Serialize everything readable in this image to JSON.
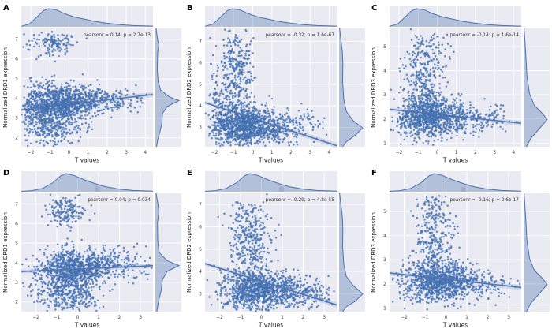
{
  "figure": {
    "background": "#ffffff",
    "xlabel": "T values"
  },
  "colors": {
    "axes_bg": "#eaeaf2",
    "grid": "#ffffff",
    "point": "#4471b2",
    "line": "#4c72b0",
    "band": "rgba(76,114,176,0.18)",
    "kde_fill": "rgba(76,114,176,0.35)",
    "kde_stroke": "#4c72b0",
    "hist_bar": "rgba(140,155,190,0.5)",
    "tick_text": "#444444",
    "label_text": "#1a1a1a",
    "annotation_text": "#333333"
  },
  "chart_data": [
    {
      "label": "A",
      "type": "scatter",
      "xlabel": "T values",
      "ylabel": "Normalized DRD1 expression",
      "annotation": "pearsonr = 0.14; p = 2.7e-13",
      "xlim": [
        -2.5,
        4.4
      ],
      "ylim": [
        1.55,
        7.55
      ],
      "xticks": [
        -2,
        -1,
        0,
        1,
        2,
        3,
        4
      ],
      "yticks": [
        2,
        3,
        4,
        5,
        6,
        7
      ],
      "regression": {
        "x": [
          -2.5,
          4.4
        ],
        "y": [
          3.42,
          4.2
        ]
      },
      "clusters": [
        [
          -0.55,
          3.75,
          0.95,
          0.5,
          850
        ],
        [
          0.9,
          3.9,
          1.1,
          0.35,
          260
        ],
        [
          2.9,
          4.0,
          0.8,
          0.3,
          45
        ],
        [
          -0.9,
          6.75,
          0.55,
          0.33,
          140
        ],
        [
          -0.8,
          2.5,
          0.75,
          0.5,
          270
        ],
        [
          -1.6,
          3.4,
          0.4,
          0.7,
          110
        ]
      ],
      "kde_top": [
        [
          0,
          0.03
        ],
        [
          0.06,
          0.15
        ],
        [
          0.12,
          0.55
        ],
        [
          0.17,
          0.9
        ],
        [
          0.21,
          1
        ],
        [
          0.27,
          0.92
        ],
        [
          0.33,
          0.72
        ],
        [
          0.4,
          0.55
        ],
        [
          0.48,
          0.42
        ],
        [
          0.56,
          0.3
        ],
        [
          0.65,
          0.2
        ],
        [
          0.75,
          0.12
        ],
        [
          0.85,
          0.07
        ],
        [
          1,
          0.04
        ]
      ],
      "kde_right": [
        [
          0,
          0.03
        ],
        [
          0.1,
          0.1
        ],
        [
          0.14,
          0.15
        ],
        [
          0.2,
          0.1
        ],
        [
          0.35,
          0.08
        ],
        [
          0.45,
          0.12
        ],
        [
          0.52,
          0.22
        ],
        [
          0.58,
          0.6
        ],
        [
          0.61,
          1
        ],
        [
          0.66,
          0.5
        ],
        [
          0.72,
          0.3
        ],
        [
          0.8,
          0.28
        ],
        [
          0.87,
          0.2
        ],
        [
          0.94,
          0.1
        ],
        [
          1,
          0.05
        ]
      ],
      "seed": 101
    },
    {
      "label": "B",
      "type": "scatter",
      "xlabel": "T values",
      "ylabel": "Normalized DRD2 expression",
      "annotation": "pearsonr = -0.32; p = 1.6e-67",
      "xlim": [
        -2.5,
        4.4
      ],
      "ylim": [
        2.1,
        7.6
      ],
      "xticks": [
        -2,
        -1,
        0,
        1,
        2,
        3,
        4
      ],
      "yticks": [
        3,
        4,
        5,
        6,
        7
      ],
      "regression": {
        "x": [
          -2.5,
          4.4
        ],
        "y": [
          4.15,
          2.15
        ]
      },
      "clusters": [
        [
          -0.6,
          3.1,
          0.75,
          0.45,
          850
        ],
        [
          -0.9,
          5.6,
          0.5,
          1.0,
          320
        ],
        [
          0.9,
          3.0,
          0.9,
          0.38,
          300
        ],
        [
          2.6,
          3.2,
          0.6,
          0.35,
          55
        ],
        [
          -1.7,
          4.1,
          0.35,
          0.8,
          110
        ]
      ],
      "kde_top": [
        [
          0,
          0.03
        ],
        [
          0.06,
          0.15
        ],
        [
          0.12,
          0.55
        ],
        [
          0.17,
          0.9
        ],
        [
          0.21,
          1
        ],
        [
          0.27,
          0.92
        ],
        [
          0.33,
          0.72
        ],
        [
          0.4,
          0.55
        ],
        [
          0.48,
          0.42
        ],
        [
          0.56,
          0.3
        ],
        [
          0.65,
          0.2
        ],
        [
          0.75,
          0.12
        ],
        [
          0.85,
          0.07
        ],
        [
          1,
          0.04
        ]
      ],
      "kde_right": [
        [
          0,
          0.02
        ],
        [
          0.1,
          0.08
        ],
        [
          0.2,
          0.14
        ],
        [
          0.3,
          0.16
        ],
        [
          0.45,
          0.15
        ],
        [
          0.6,
          0.2
        ],
        [
          0.7,
          0.3
        ],
        [
          0.78,
          0.6
        ],
        [
          0.84,
          1
        ],
        [
          0.9,
          0.7
        ],
        [
          0.96,
          0.3
        ],
        [
          1,
          0.15
        ]
      ],
      "seed": 202
    },
    {
      "label": "C",
      "type": "scatter",
      "xlabel": "T values",
      "ylabel": "Normalized DRD3 expression",
      "annotation": "pearsonr = -0.14; p = 1.6e-14",
      "xlim": [
        -2.5,
        4.4
      ],
      "ylim": [
        0.85,
        5.75
      ],
      "xticks": [
        -2,
        -1,
        0,
        1,
        2,
        3,
        4
      ],
      "yticks": [
        1,
        2,
        3,
        4,
        5
      ],
      "regression": {
        "x": [
          -2.5,
          4.4
        ],
        "y": [
          2.4,
          1.82
        ]
      },
      "clusters": [
        [
          -0.45,
          2.1,
          0.8,
          0.42,
          900
        ],
        [
          -0.7,
          3.6,
          0.55,
          0.7,
          250
        ],
        [
          1.4,
          2.0,
          0.85,
          0.35,
          180
        ],
        [
          -0.4,
          5.0,
          0.55,
          0.35,
          65
        ],
        [
          2.9,
          2.1,
          0.5,
          0.3,
          40
        ]
      ],
      "kde_top": [
        [
          0,
          0.03
        ],
        [
          0.06,
          0.15
        ],
        [
          0.12,
          0.55
        ],
        [
          0.17,
          0.9
        ],
        [
          0.21,
          1
        ],
        [
          0.27,
          0.92
        ],
        [
          0.33,
          0.72
        ],
        [
          0.4,
          0.55
        ],
        [
          0.48,
          0.42
        ],
        [
          0.56,
          0.3
        ],
        [
          0.65,
          0.2
        ],
        [
          0.75,
          0.12
        ],
        [
          0.85,
          0.07
        ],
        [
          1,
          0.04
        ]
      ],
      "kde_right": [
        [
          0,
          0.02
        ],
        [
          0.12,
          0.06
        ],
        [
          0.25,
          0.1
        ],
        [
          0.4,
          0.14
        ],
        [
          0.55,
          0.25
        ],
        [
          0.65,
          0.45
        ],
        [
          0.72,
          0.8
        ],
        [
          0.77,
          1
        ],
        [
          0.85,
          0.65
        ],
        [
          0.93,
          0.3
        ],
        [
          1,
          0.12
        ]
      ],
      "seed": 303
    },
    {
      "label": "D",
      "type": "scatter",
      "xlabel": "T values",
      "ylabel": "Normalized DRD1 expression",
      "annotation": "pearsonr = 0.04; p = 0.034",
      "xlim": [
        -2.7,
        3.6
      ],
      "ylim": [
        1.5,
        7.55
      ],
      "xticks": [
        -2,
        -1,
        0,
        1,
        2,
        3
      ],
      "yticks": [
        2,
        3,
        4,
        5,
        6,
        7
      ],
      "regression": {
        "x": [
          -2.7,
          3.6
        ],
        "y": [
          3.55,
          3.85
        ]
      },
      "clusters": [
        [
          -0.35,
          3.6,
          0.8,
          0.55,
          850
        ],
        [
          -0.6,
          6.6,
          0.5,
          0.4,
          160
        ],
        [
          -0.5,
          2.3,
          0.8,
          0.45,
          280
        ],
        [
          1.3,
          3.9,
          0.75,
          0.35,
          220
        ],
        [
          2.6,
          3.9,
          0.5,
          0.5,
          40
        ]
      ],
      "kde_top": [
        [
          0,
          0.02
        ],
        [
          0.08,
          0.06
        ],
        [
          0.16,
          0.18
        ],
        [
          0.24,
          0.5
        ],
        [
          0.3,
          0.88
        ],
        [
          0.34,
          1
        ],
        [
          0.4,
          0.9
        ],
        [
          0.48,
          0.65
        ],
        [
          0.56,
          0.45
        ],
        [
          0.64,
          0.28
        ],
        [
          0.74,
          0.15
        ],
        [
          0.85,
          0.07
        ],
        [
          1,
          0.03
        ]
      ],
      "kde_right": [
        [
          0,
          0.03
        ],
        [
          0.1,
          0.12
        ],
        [
          0.16,
          0.15
        ],
        [
          0.25,
          0.09
        ],
        [
          0.4,
          0.1
        ],
        [
          0.5,
          0.16
        ],
        [
          0.57,
          0.5
        ],
        [
          0.61,
          1
        ],
        [
          0.66,
          0.5
        ],
        [
          0.73,
          0.3
        ],
        [
          0.82,
          0.25
        ],
        [
          0.9,
          0.15
        ],
        [
          1,
          0.06
        ]
      ],
      "hist_bar": {
        "t": 0.58,
        "v": 0.3
      },
      "seed": 404
    },
    {
      "label": "E",
      "type": "scatter",
      "xlabel": "T values",
      "ylabel": "Normalized DRD2 expression",
      "annotation": "pearsonr = -0.29; p = 4.8e-55",
      "xlim": [
        -2.7,
        3.6
      ],
      "ylim": [
        2.2,
        7.5
      ],
      "xticks": [
        -2,
        -1,
        0,
        1,
        2,
        3
      ],
      "yticks": [
        3,
        4,
        5,
        6,
        7
      ],
      "regression": {
        "x": [
          -2.7,
          3.6
        ],
        "y": [
          4.35,
          2.5
        ]
      },
      "clusters": [
        [
          -0.35,
          3.1,
          0.85,
          0.45,
          850
        ],
        [
          -0.6,
          5.3,
          0.5,
          1.0,
          370
        ],
        [
          1.3,
          3.1,
          0.8,
          0.4,
          260
        ],
        [
          2.7,
          3.1,
          0.5,
          0.35,
          45
        ]
      ],
      "kde_top": [
        [
          0,
          0.02
        ],
        [
          0.08,
          0.06
        ],
        [
          0.16,
          0.18
        ],
        [
          0.24,
          0.5
        ],
        [
          0.3,
          0.88
        ],
        [
          0.34,
          1
        ],
        [
          0.4,
          0.9
        ],
        [
          0.48,
          0.65
        ],
        [
          0.56,
          0.45
        ],
        [
          0.64,
          0.28
        ],
        [
          0.74,
          0.15
        ],
        [
          0.85,
          0.07
        ],
        [
          1,
          0.03
        ]
      ],
      "kde_right": [
        [
          0,
          0.02
        ],
        [
          0.1,
          0.08
        ],
        [
          0.2,
          0.14
        ],
        [
          0.3,
          0.16
        ],
        [
          0.45,
          0.15
        ],
        [
          0.6,
          0.2
        ],
        [
          0.7,
          0.3
        ],
        [
          0.78,
          0.6
        ],
        [
          0.85,
          1
        ],
        [
          0.91,
          0.7
        ],
        [
          0.96,
          0.3
        ],
        [
          1,
          0.15
        ]
      ],
      "hist_bar": {
        "t": 0.58,
        "v": 0.28
      },
      "seed": 505
    },
    {
      "label": "F",
      "type": "scatter",
      "xlabel": "T values",
      "ylabel": "Normalized DRD3 expression",
      "annotation": "pearsonr = -0.16; p = 2.6e-17",
      "xlim": [
        -2.7,
        3.6
      ],
      "ylim": [
        0.85,
        5.75
      ],
      "xticks": [
        -2,
        -1,
        0,
        1,
        2,
        3
      ],
      "yticks": [
        1,
        2,
        3,
        4,
        5
      ],
      "regression": {
        "x": [
          -2.7,
          3.6
        ],
        "y": [
          2.45,
          1.85
        ]
      },
      "clusters": [
        [
          -0.35,
          2.1,
          0.85,
          0.42,
          900
        ],
        [
          -0.55,
          3.8,
          0.5,
          0.85,
          250
        ],
        [
          1.3,
          2.0,
          0.8,
          0.35,
          180
        ],
        [
          -0.6,
          5.0,
          0.4,
          0.3,
          45
        ]
      ],
      "kde_top": [
        [
          0,
          0.02
        ],
        [
          0.08,
          0.06
        ],
        [
          0.16,
          0.18
        ],
        [
          0.24,
          0.5
        ],
        [
          0.3,
          0.88
        ],
        [
          0.34,
          1
        ],
        [
          0.4,
          0.9
        ],
        [
          0.48,
          0.65
        ],
        [
          0.56,
          0.45
        ],
        [
          0.64,
          0.28
        ],
        [
          0.74,
          0.15
        ],
        [
          0.85,
          0.07
        ],
        [
          1,
          0.03
        ]
      ],
      "kde_right": [
        [
          0,
          0.02
        ],
        [
          0.12,
          0.06
        ],
        [
          0.25,
          0.1
        ],
        [
          0.4,
          0.14
        ],
        [
          0.55,
          0.25
        ],
        [
          0.65,
          0.45
        ],
        [
          0.72,
          0.8
        ],
        [
          0.77,
          1
        ],
        [
          0.85,
          0.65
        ],
        [
          0.93,
          0.3
        ],
        [
          1,
          0.12
        ]
      ],
      "hist_bar": {
        "t": 0.56,
        "v": 0.25
      },
      "seed": 606
    }
  ]
}
